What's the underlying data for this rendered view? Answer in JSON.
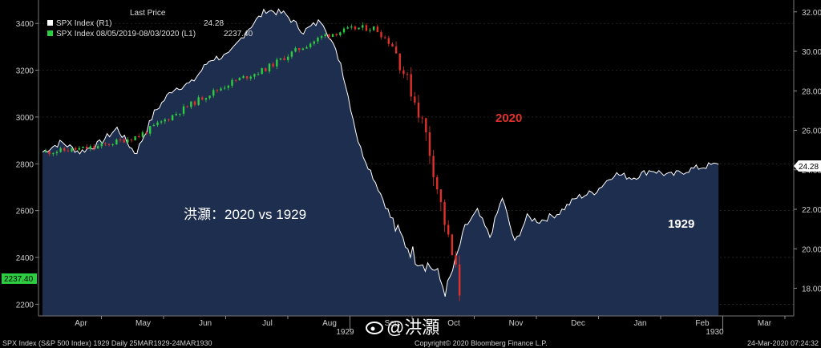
{
  "legend": {
    "header": "Last Price",
    "items": [
      {
        "label": "SPX Index  (R1)",
        "value": "24.28",
        "color": "#ffffff"
      },
      {
        "label": "SPX Index 08/05/2019-08/03/2020  (L1)",
        "value": "2237.40",
        "color": "#2ecc40"
      }
    ]
  },
  "annotations": {
    "label_2020": "2020",
    "label_1929": "1929",
    "title_cn": "洪灝：2020 vs 1929",
    "watermark": "@洪灝"
  },
  "footer": {
    "left": "SPX Index (S&P 500 Index) 1929  Daily 25MAR1929-24MAR1930",
    "center": "Copyright© 2020 Bloomberg Finance L.P.",
    "right": "24-Mar-2020 07:24:32"
  },
  "colors": {
    "up": "#2ecc40",
    "down": "#e0302a",
    "area": "#1e2e4e",
    "line": "#ffffff",
    "accent_2020": "#e0302a"
  },
  "chart_data": {
    "type": "line",
    "x_ticks": [
      "Apr",
      "May",
      "Jun",
      "Jul",
      "Aug",
      "Sep",
      "Oct",
      "Nov",
      "Dec",
      "Jan",
      "Feb",
      "Mar"
    ],
    "x_year_labels": [
      {
        "after": "Aug",
        "label": "1929"
      },
      {
        "after": "Feb",
        "label": "1930"
      }
    ],
    "left_axis": {
      "ticks": [
        2200,
        2400,
        2600,
        2800,
        3000,
        3200,
        3400
      ],
      "min": 2150,
      "max": 3500,
      "last_label": "2237.40"
    },
    "right_axis": {
      "ticks": [
        "18.00",
        "20.00",
        "22.00",
        "24.00",
        "26.00",
        "28.00",
        "30.00",
        "32.00"
      ],
      "min": 16.6,
      "max": 32.6,
      "last_label": "24.28"
    },
    "series": [
      {
        "name": "SPX Index  (R1)",
        "axis": "right",
        "x": [
          0,
          0.3,
          0.6,
          0.9,
          1.2,
          1.5,
          1.8,
          2.1,
          2.4,
          2.7,
          3.0,
          3.3,
          3.6,
          3.9,
          4.2,
          4.5,
          4.8,
          5.1,
          5.4,
          5.7,
          6.0,
          6.3,
          6.5,
          6.8,
          7.0,
          7.2,
          7.4,
          7.6,
          7.8,
          8.0,
          8.3,
          8.6,
          8.9,
          9.2,
          9.5,
          9.8,
          10.1,
          10.4,
          10.7,
          10.9
        ],
        "y": [
          24.9,
          25.4,
          24.9,
          25.3,
          26.1,
          24.8,
          26.9,
          28.1,
          28.4,
          29.6,
          29.8,
          31.1,
          32.1,
          31.9,
          31.0,
          31.6,
          29.4,
          25.2,
          23.1,
          20.9,
          19.6,
          19.0,
          17.8,
          21.1,
          21.9,
          20.6,
          22.6,
          20.3,
          21.6,
          21.4,
          21.8,
          22.6,
          22.9,
          23.8,
          23.6,
          24.0,
          23.7,
          24.0,
          24.2,
          24.28
        ]
      },
      {
        "name": "SPX Index 08/05/2019-08/03/2020  (L1)",
        "axis": "left",
        "x": [
          0.0,
          0.8,
          1.5,
          2.0,
          2.5,
          3.0,
          3.5,
          4.0,
          4.5,
          5.0,
          5.3,
          5.6,
          5.9,
          6.1,
          6.3,
          6.5,
          6.7
        ],
        "y": [
          2850,
          2870,
          2920,
          3000,
          3080,
          3150,
          3200,
          3280,
          3350,
          3380,
          3380,
          3300,
          3100,
          2950,
          2700,
          2450,
          2237.4
        ]
      }
    ]
  }
}
